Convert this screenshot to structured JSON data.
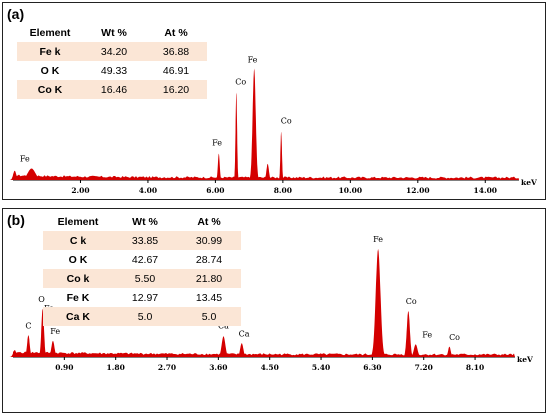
{
  "colors": {
    "spectrum": "#d40000",
    "table_shade": "#fbe6d6",
    "border": "#222222"
  },
  "chart_data": [
    {
      "type": "area",
      "panel_label": "(a)",
      "x_unit": "keV",
      "xlim": [
        0,
        15.0
      ],
      "ylim": [
        0,
        1
      ],
      "x_ticks": [
        2.0,
        4.0,
        6.0,
        8.0,
        10.0,
        12.0,
        14.0
      ],
      "x_tick_labels": [
        "2.00",
        "4.00",
        "6.00",
        "8.00",
        "10.00",
        "12.00",
        "14.00"
      ],
      "spectrum_peaks": [
        {
          "x": 0.05,
          "height": 0.08,
          "width": 0.1
        },
        {
          "x": 0.55,
          "height": 0.1,
          "width": 0.25
        },
        {
          "x": 6.1,
          "height": 0.23,
          "width": 0.06
        },
        {
          "x": 6.62,
          "height": 0.76,
          "width": 0.05
        },
        {
          "x": 7.15,
          "height": 0.97,
          "width": 0.1
        },
        {
          "x": 7.55,
          "height": 0.14,
          "width": 0.08
        },
        {
          "x": 7.95,
          "height": 0.42,
          "width": 0.05
        }
      ],
      "peak_labels": [
        {
          "text": "Fe",
          "x": 0.35,
          "height": 0.16
        },
        {
          "text": "Fe",
          "x": 6.05,
          "height": 0.3
        },
        {
          "text": "Co",
          "x": 6.75,
          "height": 0.83
        },
        {
          "text": "Fe",
          "x": 7.1,
          "height": 1.02
        },
        {
          "text": "Co",
          "x": 8.1,
          "height": 0.49
        }
      ],
      "table": {
        "headers": [
          "Element",
          "Wt %",
          "At %"
        ],
        "rows": [
          [
            "Fe k",
            "34.20",
            "36.88"
          ],
          [
            "O K",
            "49.33",
            "46.91"
          ],
          [
            "Co K",
            "16.46",
            "16.20"
          ]
        ]
      }
    },
    {
      "type": "area",
      "panel_label": "(b)",
      "x_unit": "keV",
      "xlim": [
        0,
        8.8
      ],
      "ylim": [
        0,
        1
      ],
      "x_ticks": [
        0.9,
        1.8,
        2.7,
        3.6,
        4.5,
        5.4,
        6.3,
        7.2,
        8.1
      ],
      "x_tick_labels": [
        "0.90",
        "1.80",
        "2.70",
        "3.60",
        "4.50",
        "5.40",
        "6.30",
        "7.20",
        "8.10"
      ],
      "spectrum_peaks": [
        {
          "x": 0.03,
          "height": 0.06,
          "width": 0.06
        },
        {
          "x": 0.27,
          "height": 0.19,
          "width": 0.05
        },
        {
          "x": 0.52,
          "height": 0.42,
          "width": 0.05
        },
        {
          "x": 0.7,
          "height": 0.14,
          "width": 0.06
        },
        {
          "x": 3.69,
          "height": 0.18,
          "width": 0.07
        },
        {
          "x": 4.01,
          "height": 0.12,
          "width": 0.06
        },
        {
          "x": 6.4,
          "height": 0.94,
          "width": 0.09
        },
        {
          "x": 6.93,
          "height": 0.4,
          "width": 0.06
        },
        {
          "x": 7.06,
          "height": 0.11,
          "width": 0.07
        },
        {
          "x": 7.65,
          "height": 0.09,
          "width": 0.05
        }
      ],
      "peak_labels": [
        {
          "text": "C",
          "x": 0.27,
          "height": 0.25
        },
        {
          "text": "O",
          "x": 0.5,
          "height": 0.48
        },
        {
          "text": "Fe",
          "x": 0.63,
          "height": 0.4
        },
        {
          "text": "Fe",
          "x": 0.74,
          "height": 0.2
        },
        {
          "text": "Ca",
          "x": 3.69,
          "height": 0.25
        },
        {
          "text": "Ca",
          "x": 4.05,
          "height": 0.18
        },
        {
          "text": "Fe",
          "x": 6.4,
          "height": 1.0
        },
        {
          "text": "Co",
          "x": 6.98,
          "height": 0.46
        },
        {
          "text": "Fe",
          "x": 7.26,
          "height": 0.17
        },
        {
          "text": "Co",
          "x": 7.74,
          "height": 0.15
        }
      ],
      "table": {
        "headers": [
          "Element",
          "Wt %",
          "At %"
        ],
        "rows": [
          [
            "C k",
            "33.85",
            "30.99"
          ],
          [
            "O K",
            "42.67",
            "28.74"
          ],
          [
            "Co k",
            "5.50",
            "21.80"
          ],
          [
            "Fe K",
            "12.97",
            "13.45"
          ],
          [
            "Ca K",
            "5.0",
            "5.0"
          ]
        ]
      }
    }
  ]
}
